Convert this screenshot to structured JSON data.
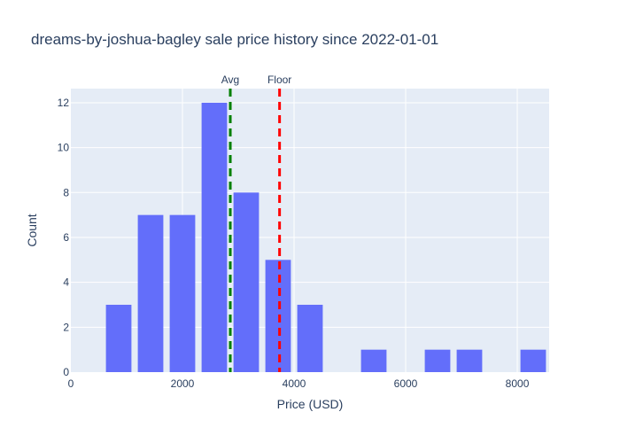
{
  "chart_data": {
    "type": "bar",
    "title": "dreams-by-joshua-bagley sale price history since 2022-01-01",
    "xlabel": "Price (USD)",
    "ylabel": "Count",
    "xlim": [
      0,
      8571
    ],
    "ylim": [
      0,
      12.63
    ],
    "x_ticks": [
      0,
      2000,
      4000,
      6000,
      8000
    ],
    "x_tick_labels": [
      "0",
      "2000",
      "4000",
      "6000",
      "8000"
    ],
    "y_ticks": [
      0,
      2,
      4,
      6,
      8,
      10,
      12
    ],
    "y_tick_labels": [
      "0",
      "2",
      "4",
      "6",
      "8",
      "10",
      "12"
    ],
    "bin_width": 571.4,
    "bins": [
      {
        "x0": 571.4,
        "x1": 1142.8,
        "count": 3
      },
      {
        "x0": 1142.8,
        "x1": 1714.2,
        "count": 7
      },
      {
        "x0": 1714.2,
        "x1": 2285.6,
        "count": 7
      },
      {
        "x0": 2285.6,
        "x1": 2857.0,
        "count": 12
      },
      {
        "x0": 2857.0,
        "x1": 3428.4,
        "count": 8
      },
      {
        "x0": 3428.4,
        "x1": 3999.8,
        "count": 5
      },
      {
        "x0": 3999.8,
        "x1": 4571.2,
        "count": 3
      },
      {
        "x0": 5142.6,
        "x1": 5714.0,
        "count": 1
      },
      {
        "x0": 6285.4,
        "x1": 6856.8,
        "count": 1
      },
      {
        "x0": 6856.8,
        "x1": 7428.2,
        "count": 1
      },
      {
        "x0": 7999.6,
        "x1": 8571.0,
        "count": 1
      }
    ],
    "bar_color": "#636efa",
    "vlines": [
      {
        "label": "Avg",
        "x": 2857,
        "color": "#008000"
      },
      {
        "label": "Floor",
        "x": 3740,
        "color": "#ff0000"
      }
    ],
    "grid": true,
    "plot_background": "#e5ecf6",
    "legend": "none"
  }
}
